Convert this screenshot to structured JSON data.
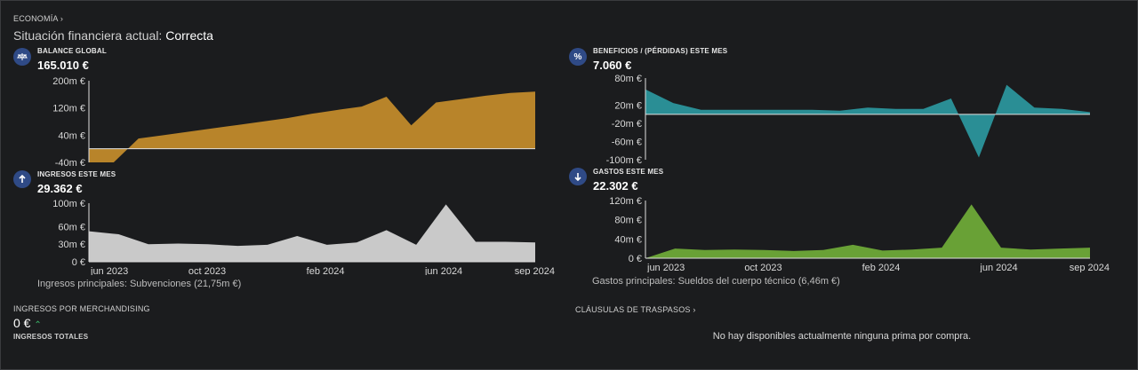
{
  "header": {
    "breadcrumb": "ECONOMÍA",
    "status_label": "Situación financiera actual:",
    "status_value": "Correcta"
  },
  "colors": {
    "balance": "#b8842a",
    "profit": "#2a8e95",
    "income": "#c9c9c9",
    "expense": "#69a136",
    "accent": "#2f4a86",
    "positive": "#3ab86a"
  },
  "panels": {
    "balance": {
      "title": "BALANCE GLOBAL",
      "value": "165.010 €",
      "icon": "balance-scale-icon"
    },
    "profit": {
      "title": "BENEFICIOS / (PÉRDIDAS) ESTE MES",
      "value": "7.060 €",
      "icon": "percent-icon"
    },
    "income": {
      "title": "INGRESOS ESTE MES",
      "value": "29.362 €",
      "icon": "arrow-up-icon",
      "main": "Ingresos principales: Subvenciones (21,75m €)"
    },
    "expense": {
      "title": "GASTOS ESTE MES",
      "value": "22.302 €",
      "icon": "arrow-down-icon",
      "main": "Gastos principales: Sueldos del cuerpo técnico (6,46m €)"
    }
  },
  "merch": {
    "title": "INGRESOS POR MERCHANDISING",
    "value": "0 €",
    "totals": "INGRESOS TOTALES"
  },
  "clauses": {
    "title": "CLÁUSULAS DE TRASPASOS",
    "empty": "No hay disponibles actualmente ninguna prima por compra."
  },
  "chart_data": [
    {
      "id": "balance",
      "type": "area",
      "x_labels": [
        "jun 2023",
        "oct 2023",
        "feb 2024",
        "jun 2024",
        "sep 2024"
      ],
      "y_ticks": [
        "200m €",
        "120m €",
        "40m €",
        "-40m €"
      ],
      "ylim": [
        -40,
        200
      ],
      "values": [
        -40,
        -40,
        30,
        40,
        50,
        60,
        70,
        80,
        90,
        103,
        114,
        124,
        153,
        69,
        136,
        146,
        156,
        164,
        168
      ]
    },
    {
      "id": "profit",
      "type": "area",
      "x_labels": [
        "jun 2023",
        "oct 2023",
        "feb 2024",
        "jun 2024",
        "sep 2024"
      ],
      "y_ticks": [
        "80m €",
        "20m €",
        "-20m €",
        "-60m €",
        "-100m €"
      ],
      "ylim": [
        -100,
        80
      ],
      "values": [
        55,
        25,
        10,
        10,
        10,
        10,
        10,
        8,
        15,
        12,
        12,
        35,
        -95,
        65,
        15,
        12,
        5
      ]
    },
    {
      "id": "income",
      "type": "area",
      "x_labels": [
        "jun 2023",
        "oct 2023",
        "feb 2024",
        "jun 2024",
        "sep 2024"
      ],
      "y_ticks": [
        "100m €",
        "60m €",
        "30m €",
        "0 €"
      ],
      "ylim": [
        0,
        100
      ],
      "values": [
        52,
        47,
        30,
        31,
        30,
        27,
        29,
        44,
        29,
        33,
        54,
        29,
        98,
        34,
        34,
        33
      ]
    },
    {
      "id": "expense",
      "type": "area",
      "x_labels": [
        "jun 2023",
        "oct 2023",
        "feb 2024",
        "jun 2024",
        "sep 2024"
      ],
      "y_ticks": [
        "120m €",
        "80m €",
        "40m €",
        "0 €"
      ],
      "ylim": [
        0,
        120
      ],
      "values": [
        0,
        20,
        17,
        18,
        17,
        15,
        17,
        28,
        16,
        18,
        22,
        112,
        22,
        18,
        20,
        22
      ]
    }
  ]
}
